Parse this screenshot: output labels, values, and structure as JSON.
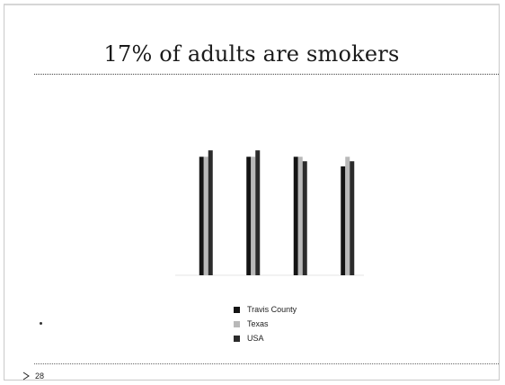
{
  "slide": {
    "title": "17% of adults are smokers",
    "page_number": "28"
  },
  "colors": {
    "travis": "#141414",
    "texas": "#b9b9b9",
    "usa": "#2b2b2b",
    "faint_text": "#e6e6e6"
  },
  "chart_data": {
    "type": "bar",
    "title": "",
    "categories": [
      "",
      "",
      "",
      ""
    ],
    "series": [
      {
        "name": "Travis County",
        "values": [
          18.5,
          18.5,
          18.5,
          17.0
        ]
      },
      {
        "name": "Texas",
        "values": [
          18.5,
          18.5,
          18.5,
          18.5
        ]
      },
      {
        "name": "USA",
        "values": [
          19.5,
          19.5,
          17.8,
          17.8
        ]
      }
    ],
    "y_ticks": [
      "",
      "",
      "",
      "",
      ""
    ],
    "ylim": [
      0,
      25
    ],
    "grid": false,
    "legend": "bottom",
    "source": ""
  }
}
